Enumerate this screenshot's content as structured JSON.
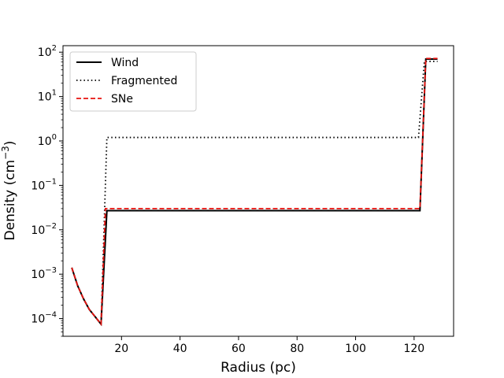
{
  "chart_data": {
    "type": "line",
    "title": "",
    "xlabel": "Radius (pc)",
    "ylabel": {
      "base": "Density (cm",
      "exponent": "−3",
      "close": ")"
    },
    "xlim": [
      0,
      133.5
    ],
    "ylim": [
      4e-05,
      140
    ],
    "yscale": "log",
    "grid": false,
    "legend_position": "top-left",
    "x_ticks": [
      {
        "value": 20,
        "label": "20"
      },
      {
        "value": 40,
        "label": "40"
      },
      {
        "value": 60,
        "label": "60"
      },
      {
        "value": 80,
        "label": "80"
      },
      {
        "value": 100,
        "label": "100"
      },
      {
        "value": 120,
        "label": "120"
      }
    ],
    "y_ticks": [
      {
        "value": 0.0001,
        "base": "10",
        "exp": "−4"
      },
      {
        "value": 0.001,
        "base": "10",
        "exp": "−3"
      },
      {
        "value": 0.01,
        "base": "10",
        "exp": "−2"
      },
      {
        "value": 0.1,
        "base": "10",
        "exp": "−1"
      },
      {
        "value": 1,
        "base": "10",
        "exp": "0"
      },
      {
        "value": 10,
        "base": "10",
        "exp": "1"
      },
      {
        "value": 100,
        "base": "10",
        "exp": "2"
      }
    ],
    "series": [
      {
        "name": "Wind",
        "color": "#000000",
        "style": "solid",
        "x": [
          3,
          5,
          7,
          9,
          11,
          13,
          15,
          20,
          40,
          60,
          80,
          100,
          120,
          122,
          124,
          128
        ],
        "y": [
          0.0014,
          0.00055,
          0.00028,
          0.00016,
          0.00011,
          7.5e-05,
          0.027,
          0.027,
          0.027,
          0.027,
          0.027,
          0.027,
          0.027,
          0.027,
          70,
          70
        ]
      },
      {
        "name": "Fragmented",
        "color": "#000000",
        "style": "dotted",
        "x": [
          3,
          5,
          7,
          9,
          11,
          13,
          15,
          20,
          40,
          60,
          80,
          100,
          120,
          121.5,
          123.5,
          128
        ],
        "y": [
          0.0014,
          0.00055,
          0.00028,
          0.00016,
          0.00011,
          7.5e-05,
          1.2,
          1.2,
          1.2,
          1.2,
          1.2,
          1.2,
          1.2,
          1.2,
          62,
          62
        ]
      },
      {
        "name": "SNe",
        "color": "#e8120e",
        "style": "dashed",
        "x": [
          3,
          5,
          7,
          9,
          11,
          13,
          14.5,
          20,
          40,
          60,
          80,
          100,
          120,
          122,
          124,
          128
        ],
        "y": [
          0.0014,
          0.00055,
          0.00028,
          0.00016,
          0.00011,
          7.5e-05,
          0.03,
          0.03,
          0.03,
          0.03,
          0.03,
          0.03,
          0.03,
          0.03,
          72,
          72
        ]
      }
    ]
  }
}
